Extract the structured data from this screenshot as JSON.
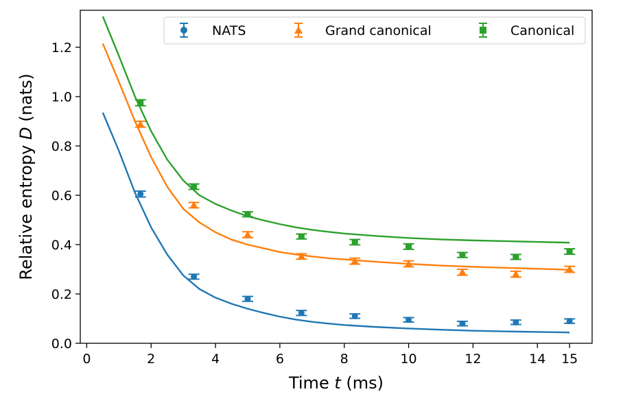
{
  "chart_data": {
    "type": "scatter",
    "xlabel_parts": [
      "Time ",
      "t",
      " (ms)"
    ],
    "ylabel_parts": [
      "Relative entropy ",
      "D",
      " (nats)"
    ],
    "xlim": [
      -0.2,
      15.7
    ],
    "ylim": [
      0.0,
      1.35
    ],
    "xticks": [
      0,
      2,
      4,
      6,
      8,
      10,
      12,
      14,
      15
    ],
    "xtick_labels": [
      "0",
      "2",
      "4",
      "6",
      "8",
      "10",
      "12",
      "14",
      "15"
    ],
    "yticks": [
      0.0,
      0.2,
      0.4,
      0.6,
      0.8,
      1.0,
      1.2
    ],
    "ytick_labels": [
      "0.0",
      "0.2",
      "0.4",
      "0.6",
      "0.8",
      "1.0",
      "1.2"
    ],
    "legend_position": "top-right",
    "series": [
      {
        "name": "NATS",
        "color": "#1f77b4",
        "marker": "circle",
        "points": [
          {
            "x": 1.67,
            "y": 0.605,
            "err": 0.012
          },
          {
            "x": 3.33,
            "y": 0.27,
            "err": 0.01
          },
          {
            "x": 5.0,
            "y": 0.18,
            "err": 0.01
          },
          {
            "x": 6.67,
            "y": 0.123,
            "err": 0.01
          },
          {
            "x": 8.33,
            "y": 0.11,
            "err": 0.009
          },
          {
            "x": 10.0,
            "y": 0.095,
            "err": 0.009
          },
          {
            "x": 11.67,
            "y": 0.08,
            "err": 0.009
          },
          {
            "x": 13.33,
            "y": 0.085,
            "err": 0.009
          },
          {
            "x": 15.0,
            "y": 0.09,
            "err": 0.009
          }
        ],
        "curve": {
          "x": [
            0.5,
            1.0,
            1.5,
            2.0,
            2.5,
            3.0,
            3.5,
            4.0,
            4.5,
            5.0,
            5.5,
            6.0,
            6.5,
            7.0,
            7.5,
            8.0,
            9.0,
            10.0,
            11.0,
            12.0,
            13.0,
            14.0,
            15.0
          ],
          "y": [
            0.935,
            0.78,
            0.61,
            0.47,
            0.36,
            0.275,
            0.22,
            0.185,
            0.16,
            0.14,
            0.123,
            0.108,
            0.096,
            0.087,
            0.08,
            0.074,
            0.066,
            0.06,
            0.055,
            0.051,
            0.048,
            0.046,
            0.044
          ]
        }
      },
      {
        "name": "Grand canonical",
        "color": "#ff7f0e",
        "marker": "triangle",
        "points": [
          {
            "x": 1.67,
            "y": 0.888,
            "err": 0.012
          },
          {
            "x": 3.33,
            "y": 0.56,
            "err": 0.011
          },
          {
            "x": 5.0,
            "y": 0.44,
            "err": 0.012
          },
          {
            "x": 6.67,
            "y": 0.352,
            "err": 0.011
          },
          {
            "x": 8.33,
            "y": 0.333,
            "err": 0.012
          },
          {
            "x": 10.0,
            "y": 0.322,
            "err": 0.012
          },
          {
            "x": 11.67,
            "y": 0.288,
            "err": 0.012
          },
          {
            "x": 13.33,
            "y": 0.28,
            "err": 0.012
          },
          {
            "x": 15.0,
            "y": 0.3,
            "err": 0.012
          }
        ],
        "curve": {
          "x": [
            0.5,
            1.0,
            1.5,
            2.0,
            2.5,
            3.0,
            3.5,
            4.0,
            4.5,
            5.0,
            5.5,
            6.0,
            6.5,
            7.0,
            7.5,
            8.0,
            9.0,
            10.0,
            11.0,
            12.0,
            13.0,
            14.0,
            15.0
          ],
          "y": [
            1.215,
            1.06,
            0.9,
            0.755,
            0.635,
            0.545,
            0.49,
            0.45,
            0.42,
            0.4,
            0.385,
            0.37,
            0.36,
            0.352,
            0.345,
            0.34,
            0.33,
            0.322,
            0.315,
            0.31,
            0.306,
            0.302,
            0.298
          ]
        }
      },
      {
        "name": "Canonical",
        "color": "#2ca02c",
        "marker": "square",
        "points": [
          {
            "x": 1.67,
            "y": 0.975,
            "err": 0.012
          },
          {
            "x": 3.33,
            "y": 0.635,
            "err": 0.011
          },
          {
            "x": 5.0,
            "y": 0.523,
            "err": 0.01
          },
          {
            "x": 6.67,
            "y": 0.433,
            "err": 0.01
          },
          {
            "x": 8.33,
            "y": 0.41,
            "err": 0.011
          },
          {
            "x": 10.0,
            "y": 0.392,
            "err": 0.011
          },
          {
            "x": 11.67,
            "y": 0.358,
            "err": 0.01
          },
          {
            "x": 13.33,
            "y": 0.35,
            "err": 0.01
          },
          {
            "x": 15.0,
            "y": 0.372,
            "err": 0.011
          }
        ],
        "curve": {
          "x": [
            0.5,
            1.0,
            1.5,
            2.0,
            2.5,
            3.0,
            3.5,
            4.0,
            4.5,
            5.0,
            5.5,
            6.0,
            6.5,
            7.0,
            7.5,
            8.0,
            9.0,
            10.0,
            11.0,
            12.0,
            13.0,
            14.0,
            15.0
          ],
          "y": [
            1.325,
            1.165,
            1.0,
            0.86,
            0.745,
            0.66,
            0.6,
            0.565,
            0.538,
            0.515,
            0.498,
            0.483,
            0.47,
            0.46,
            0.452,
            0.445,
            0.435,
            0.427,
            0.421,
            0.417,
            0.414,
            0.411,
            0.408
          ]
        }
      }
    ]
  }
}
